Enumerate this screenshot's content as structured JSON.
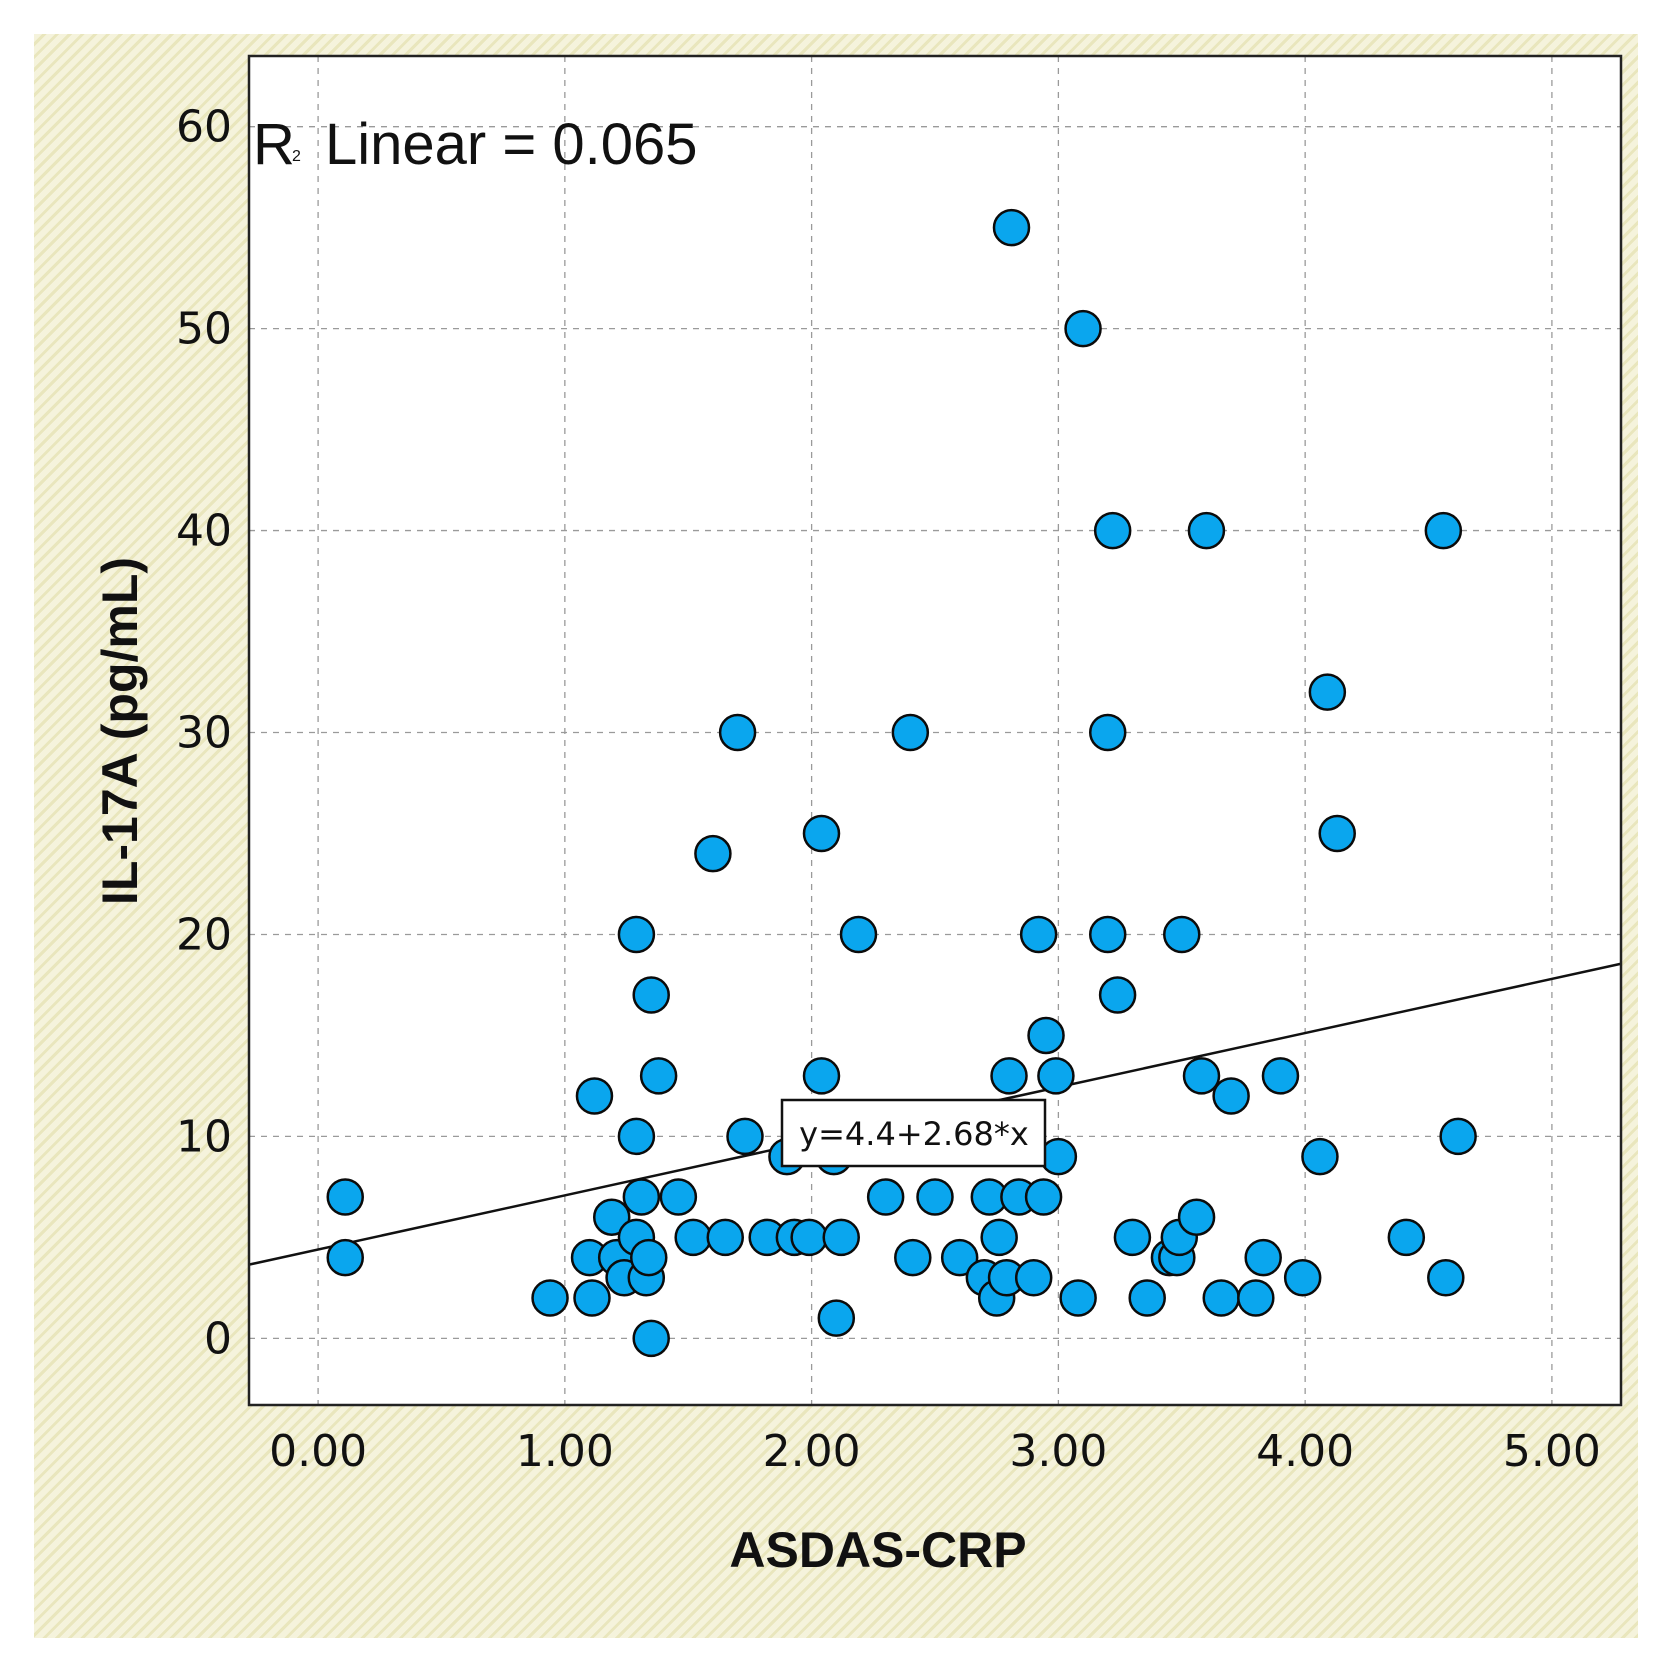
{
  "chart_data": {
    "type": "scatter",
    "xlabel": "ASDAS-CRP",
    "ylabel": "IL-17A (pg/mL)",
    "xlim": [
      -0.28,
      5.28
    ],
    "ylim": [
      -3.3,
      63.5
    ],
    "xticks": [
      0,
      1,
      2,
      3,
      4,
      5
    ],
    "xtick_labels": [
      "0.00",
      "1.00",
      "2.00",
      "3.00",
      "4.00",
      "5.00"
    ],
    "yticks": [
      0,
      10,
      20,
      30,
      40,
      50,
      60
    ],
    "ytick_labels": [
      "0",
      "10",
      "20",
      "30",
      "40",
      "50",
      "60"
    ],
    "grid": true,
    "r2_label": "R",
    "r2_sup": "2",
    "r2_text": "Linear = 0.065",
    "fit": {
      "intercept": 4.4,
      "slope": 2.68
    },
    "equation": "y=4.4+2.68*x",
    "marker_color": "#0aa6ee",
    "points": [
      [
        0.11,
        7
      ],
      [
        0.11,
        4
      ],
      [
        0.94,
        2
      ],
      [
        1.1,
        4
      ],
      [
        1.11,
        2
      ],
      [
        1.12,
        12
      ],
      [
        1.19,
        6
      ],
      [
        1.21,
        4
      ],
      [
        1.24,
        3
      ],
      [
        1.29,
        20
      ],
      [
        1.29,
        10
      ],
      [
        1.29,
        5
      ],
      [
        1.31,
        7
      ],
      [
        1.33,
        3
      ],
      [
        1.34,
        4
      ],
      [
        1.35,
        17
      ],
      [
        1.35,
        0
      ],
      [
        1.38,
        13
      ],
      [
        1.46,
        7
      ],
      [
        1.52,
        5
      ],
      [
        1.6,
        24
      ],
      [
        1.65,
        5
      ],
      [
        1.7,
        30
      ],
      [
        1.73,
        10
      ],
      [
        1.82,
        5
      ],
      [
        1.9,
        9
      ],
      [
        1.93,
        5
      ],
      [
        1.99,
        5
      ],
      [
        2.04,
        25
      ],
      [
        2.04,
        13
      ],
      [
        2.09,
        9
      ],
      [
        2.1,
        1
      ],
      [
        2.12,
        5
      ],
      [
        2.19,
        20
      ],
      [
        2.3,
        7
      ],
      [
        2.4,
        30
      ],
      [
        2.41,
        4
      ],
      [
        2.5,
        7
      ],
      [
        2.6,
        4
      ],
      [
        2.7,
        3
      ],
      [
        2.72,
        7
      ],
      [
        2.75,
        2
      ],
      [
        2.76,
        5
      ],
      [
        2.79,
        3
      ],
      [
        2.8,
        13
      ],
      [
        2.81,
        55
      ],
      [
        2.84,
        7
      ],
      [
        2.9,
        3
      ],
      [
        2.92,
        20
      ],
      [
        2.94,
        7
      ],
      [
        2.95,
        15
      ],
      [
        2.99,
        13
      ],
      [
        3.0,
        9
      ],
      [
        3.08,
        2
      ],
      [
        3.1,
        50
      ],
      [
        3.2,
        30
      ],
      [
        3.2,
        20
      ],
      [
        3.22,
        40
      ],
      [
        3.24,
        17
      ],
      [
        3.3,
        5
      ],
      [
        3.36,
        2
      ],
      [
        3.45,
        4
      ],
      [
        3.48,
        4
      ],
      [
        3.49,
        5
      ],
      [
        3.5,
        20
      ],
      [
        3.56,
        6
      ],
      [
        3.58,
        13
      ],
      [
        3.6,
        40
      ],
      [
        3.66,
        2
      ],
      [
        3.7,
        12
      ],
      [
        3.8,
        2
      ],
      [
        3.83,
        4
      ],
      [
        3.9,
        13
      ],
      [
        3.99,
        3
      ],
      [
        4.06,
        9
      ],
      [
        4.09,
        32
      ],
      [
        4.13,
        25
      ],
      [
        4.41,
        5
      ],
      [
        4.56,
        40
      ],
      [
        4.57,
        3
      ],
      [
        4.62,
        10
      ]
    ]
  }
}
